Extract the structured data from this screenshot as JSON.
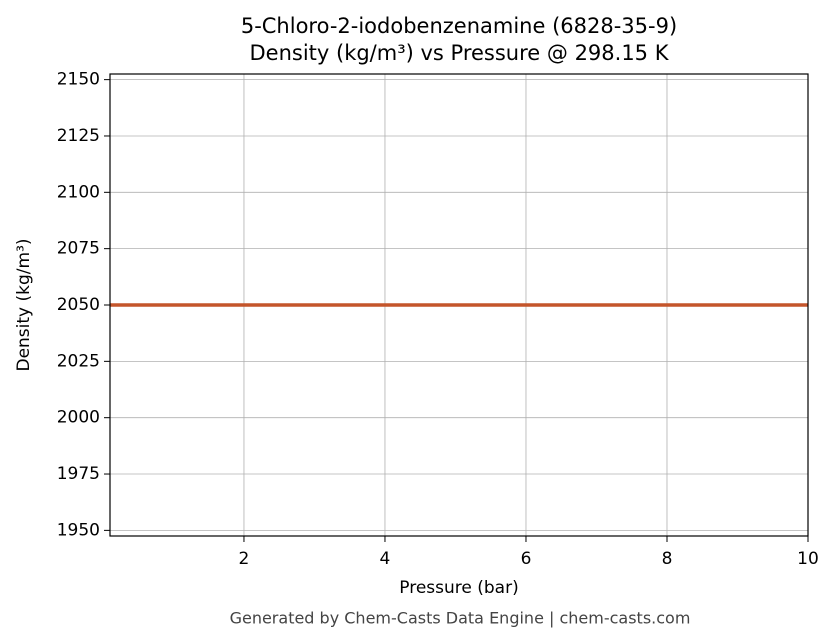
{
  "chart_data": {
    "type": "line",
    "title": "5-Chloro-2-iodobenzenamine (6828-35-9)",
    "subtitle": "Density (kg/m³) vs Pressure @ 298.15 K",
    "x_label": "Pressure (bar)",
    "y_label": "Density (kg/m³)",
    "x": [
      0.1,
      10
    ],
    "series": [
      {
        "name": "Density",
        "color": "#c4552b",
        "values": [
          2050,
          2050
        ]
      }
    ],
    "xlim": [
      0.1,
      10
    ],
    "ylim": [
      1947.5,
      2152.5
    ],
    "xticks": [
      2,
      4,
      6,
      8,
      10
    ],
    "yticks": [
      1950,
      1975,
      2000,
      2025,
      2050,
      2075,
      2100,
      2125,
      2150
    ],
    "grid": true,
    "footer": "Generated by Chem-Casts Data Engine | chem-casts.com"
  }
}
